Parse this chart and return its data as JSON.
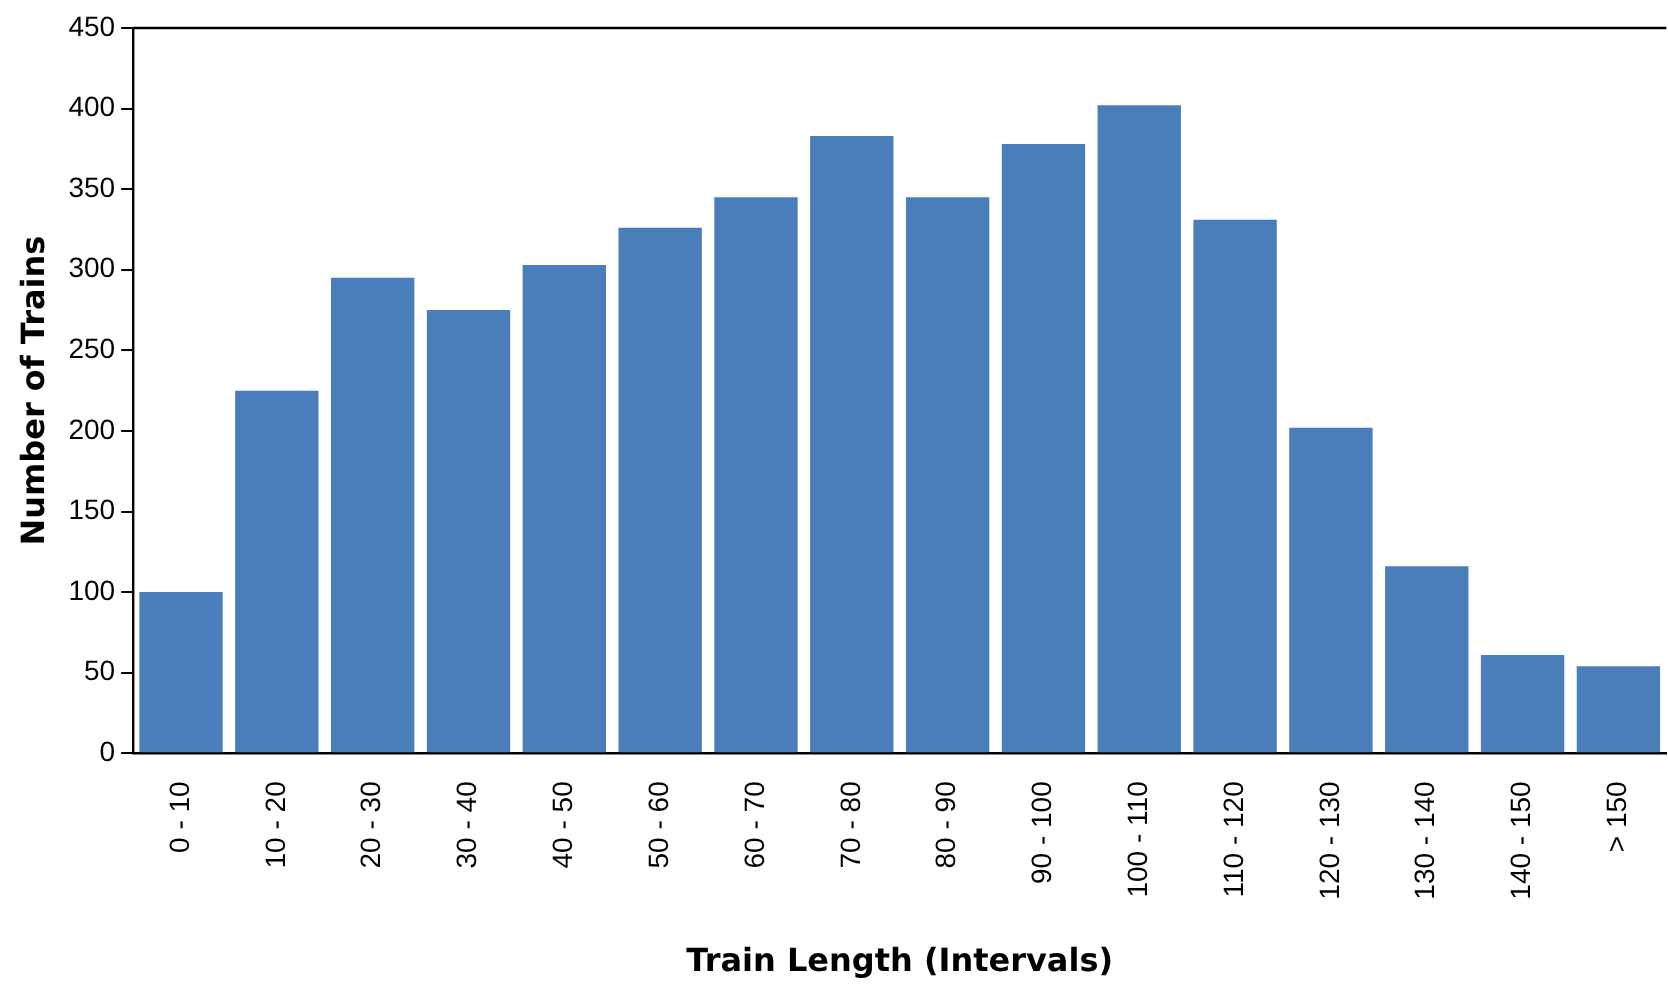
{
  "chart_data": {
    "type": "bar",
    "xlabel": "Train Length (Intervals)",
    "ylabel": "Number of Trains",
    "categories": [
      "0 - 10",
      "10 - 20",
      "20 - 30",
      "30 - 40",
      "40 - 50",
      "50 - 60",
      "60 - 70",
      "70 - 80",
      "80 - 90",
      "90 - 100",
      "100 - 110",
      "110 - 120",
      "120 - 130",
      "130 - 140",
      "140 - 150",
      "> 150"
    ],
    "values": [
      100,
      225,
      295,
      275,
      303,
      326,
      345,
      383,
      345,
      378,
      402,
      331,
      202,
      116,
      61,
      54
    ],
    "color": "#4a7ebb",
    "ylim": [
      0,
      450
    ],
    "yticks": [
      0,
      50,
      100,
      150,
      200,
      250,
      300,
      350,
      400,
      450
    ],
    "grid": false,
    "legend": false
  }
}
